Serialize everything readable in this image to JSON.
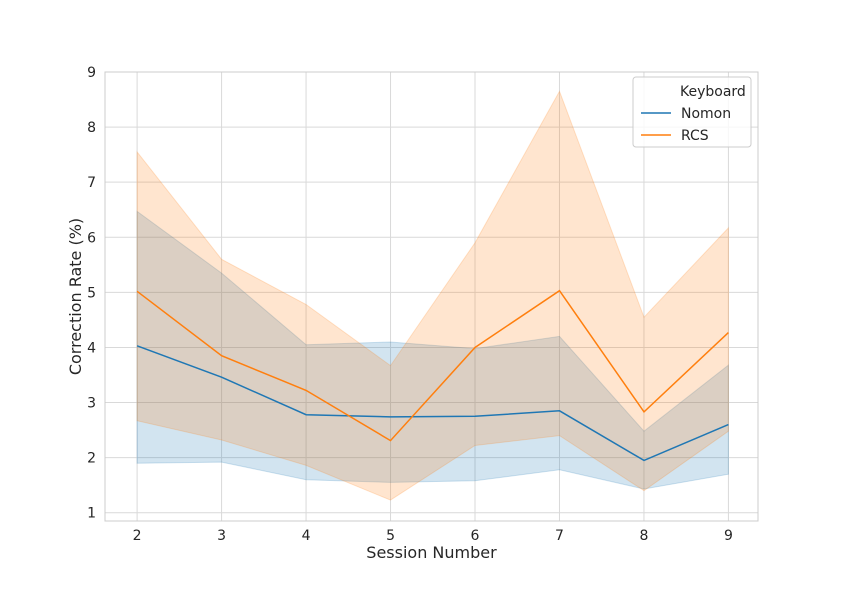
{
  "chart_data": {
    "type": "line",
    "title": "",
    "xlabel": "Session Number",
    "ylabel": "Correction Rate (%)",
    "x": [
      2,
      3,
      4,
      5,
      6,
      7,
      8,
      9
    ],
    "xlim": [
      1.62,
      9.35
    ],
    "ylim": [
      0.85,
      9.0
    ],
    "xticks": [
      "2",
      "3",
      "4",
      "5",
      "6",
      "7",
      "8",
      "9"
    ],
    "yticks": [
      "1",
      "2",
      "3",
      "4",
      "5",
      "6",
      "7",
      "8",
      "9"
    ],
    "grid": true,
    "legend_position": "top-right",
    "legend_title": "Keyboard",
    "series": [
      {
        "name": "Nomon",
        "color": "#1f77b4",
        "values": [
          4.03,
          3.46,
          2.78,
          2.74,
          2.75,
          2.85,
          1.95,
          2.6
        ],
        "ci_low": [
          1.9,
          1.92,
          1.6,
          1.55,
          1.58,
          1.78,
          1.43,
          1.7
        ],
        "ci_high": [
          6.47,
          5.35,
          4.05,
          4.1,
          3.98,
          4.2,
          2.48,
          3.68
        ]
      },
      {
        "name": "RCS",
        "color": "#ff7f0e",
        "values": [
          5.02,
          3.85,
          3.22,
          2.31,
          4.0,
          5.03,
          2.83,
          4.27
        ],
        "ci_low": [
          2.67,
          2.32,
          1.86,
          1.23,
          2.22,
          2.4,
          1.4,
          2.48
        ],
        "ci_high": [
          7.55,
          5.6,
          4.78,
          3.67,
          5.9,
          8.65,
          4.55,
          6.17
        ]
      }
    ]
  }
}
